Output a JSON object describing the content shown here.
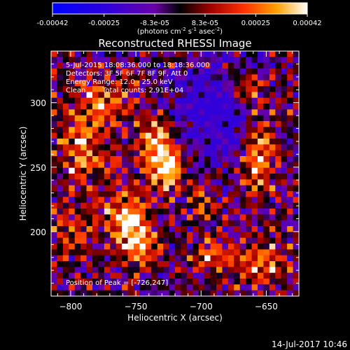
{
  "chart_data": {
    "type": "heatmap",
    "title": "Reconstructed RHESSI Image",
    "xlabel": "Heliocentric X (arcsec)",
    "ylabel": "Heliocentric Y (arcsec)",
    "xlim": [
      -815,
      -625
    ],
    "ylim": [
      150,
      340
    ],
    "xticks": [
      -800,
      -750,
      -700,
      -650
    ],
    "yticks": [
      200,
      250,
      300
    ],
    "colorbar": {
      "range": [
        -0.00042,
        0.00042
      ],
      "ticks": [
        "-0.00042",
        "-0.00025",
        "-8.3e-05",
        "8.3e-05",
        "0.00025",
        "0.00042"
      ],
      "tick_values": [
        -0.00042,
        -0.00025,
        -8.3e-05,
        8.3e-05,
        0.00025,
        0.00042
      ],
      "units_prefix": "(photons cm",
      "units_exp1": "-2",
      "units_mid": " s",
      "units_exp2": "-1",
      "units_mid2": " asec",
      "units_exp3": "-2",
      "units_suffix": ")"
    },
    "peak": [
      -726,
      247
    ],
    "sources": [
      {
        "x": -727,
        "y": 248,
        "amp": 1.0,
        "sx": 7,
        "sy": 12
      },
      {
        "x": -735,
        "y": 272,
        "amp": 0.65,
        "sx": 9,
        "sy": 14
      },
      {
        "x": -758,
        "y": 210,
        "amp": 0.75,
        "sx": 12,
        "sy": 16
      },
      {
        "x": -745,
        "y": 190,
        "amp": 0.55,
        "sx": 10,
        "sy": 12
      },
      {
        "x": -790,
        "y": 265,
        "amp": 0.55,
        "sx": 14,
        "sy": 20
      },
      {
        "x": -775,
        "y": 300,
        "amp": 0.45,
        "sx": 14,
        "sy": 12
      },
      {
        "x": -655,
        "y": 260,
        "amp": 0.6,
        "sx": 9,
        "sy": 24
      },
      {
        "x": -650,
        "y": 175,
        "amp": 0.5,
        "sx": 14,
        "sy": 12
      },
      {
        "x": -690,
        "y": 180,
        "amp": 0.45,
        "sx": 12,
        "sy": 10
      },
      {
        "x": -700,
        "y": 225,
        "amp": 0.35,
        "sx": 8,
        "sy": 8
      },
      {
        "x": -800,
        "y": 200,
        "amp": 0.4,
        "sx": 10,
        "sy": 14
      },
      {
        "x": -665,
        "y": 310,
        "amp": 0.45,
        "sx": 10,
        "sy": 10
      }
    ],
    "dim_region": {
      "x": -690,
      "y": 295,
      "sx": 22,
      "sy": 22
    }
  },
  "annotations": {
    "time": "5-Jul-2015 18:08:36.000 to 18:18:36.000",
    "detectors": "Detectors: 3F 5F 6F 7F 8F 9F, Att 0",
    "energy": "Energy Range: 12.0 - 25.0 keV",
    "clean": "Clean",
    "counts": "Total counts: 2.91E+04",
    "peak_label": "Position of Peak = [-726,247]"
  },
  "footer_date": "14-Jul-2017 10:46",
  "colors": {
    "frame": "#ffffff",
    "background": "#000000"
  }
}
